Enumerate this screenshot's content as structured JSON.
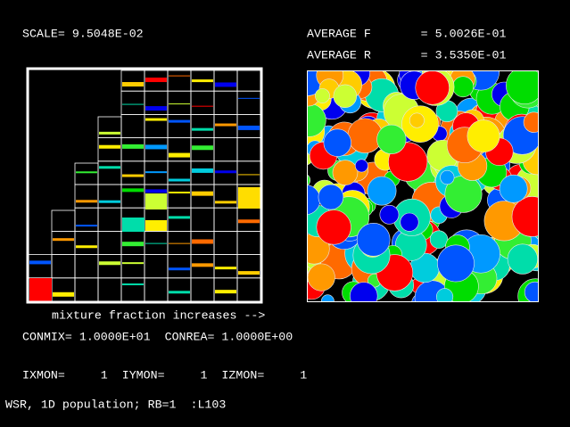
{
  "header": {
    "scale": "SCALE= 9.5048E-02",
    "average_f": "AVERAGE F       = 5.0026E-01",
    "average_r": "AVERAGE R       = 3.5350E-01"
  },
  "caption": "mixture fraction increases -->",
  "constants": "CONMIX= 1.0000E+01  CONREA= 1.0000E+00",
  "monitor": "IXMON=     1  IYMON=     1  IZMON=     1",
  "footer": "WSR, 1D population; RB=1  :L103"
}
